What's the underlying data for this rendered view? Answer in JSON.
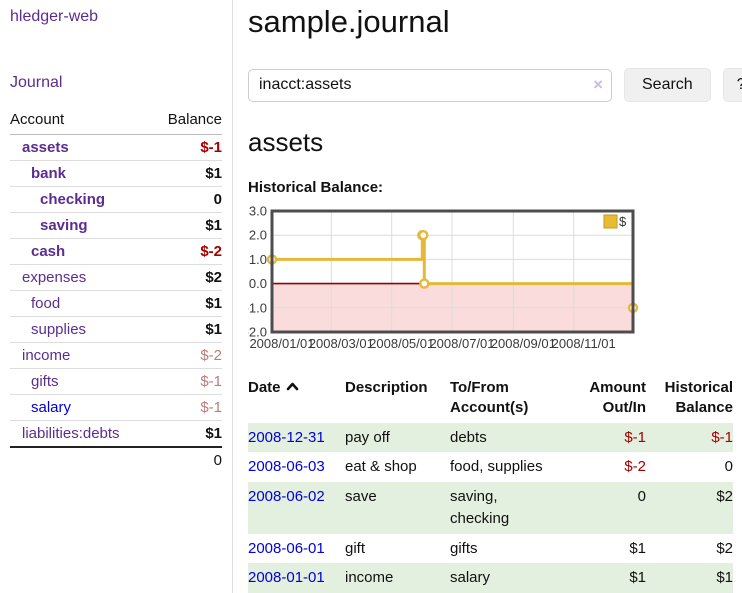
{
  "sidebar": {
    "app_title": "hledger-web",
    "journal_link": "Journal",
    "accounts": {
      "col_account": "Account",
      "col_balance": "Balance",
      "rows": [
        {
          "name": "assets",
          "indent": 0,
          "bold": true,
          "balance": "$-1",
          "tone": "neg",
          "balance_bold": true,
          "link": "purple"
        },
        {
          "name": "bank",
          "indent": 1,
          "bold": true,
          "balance": "$1",
          "tone": "pos",
          "balance_bold": true,
          "link": "purple"
        },
        {
          "name": "checking",
          "indent": 2,
          "bold": true,
          "balance": "0",
          "tone": "pos",
          "balance_bold": true,
          "link": "purple"
        },
        {
          "name": "saving",
          "indent": 2,
          "bold": true,
          "balance": "$1",
          "tone": "pos",
          "balance_bold": true,
          "link": "purple"
        },
        {
          "name": "cash",
          "indent": 1,
          "bold": true,
          "balance": "$-2",
          "tone": "neg",
          "balance_bold": true,
          "link": "purple"
        },
        {
          "name": "expenses",
          "indent": 0,
          "bold": false,
          "balance": "$2",
          "tone": "pos",
          "balance_bold": true,
          "link": "purple"
        },
        {
          "name": "food",
          "indent": 1,
          "bold": false,
          "balance": "$1",
          "tone": "pos",
          "balance_bold": true,
          "link": "purple"
        },
        {
          "name": "supplies",
          "indent": 1,
          "bold": false,
          "balance": "$1",
          "tone": "pos",
          "balance_bold": true,
          "link": "purple"
        },
        {
          "name": "income",
          "indent": 0,
          "bold": false,
          "balance": "$-2",
          "tone": "neg-soft",
          "balance_bold": false,
          "link": "purple"
        },
        {
          "name": "gifts",
          "indent": 1,
          "bold": false,
          "balance": "$-1",
          "tone": "neg-soft",
          "balance_bold": false,
          "link": "purple"
        },
        {
          "name": "salary",
          "indent": 1,
          "bold": false,
          "balance": "$-1",
          "tone": "neg-soft",
          "balance_bold": false,
          "link": "blue"
        },
        {
          "name": "liabilities:debts",
          "indent": 0,
          "bold": false,
          "balance": "$1",
          "tone": "pos",
          "balance_bold": true,
          "link": "purple"
        }
      ],
      "total": "0"
    }
  },
  "main": {
    "title": "sample.journal",
    "search": {
      "value": "inacct:assets",
      "placeholder": "",
      "clear_icon": "×",
      "button": "Search",
      "help": "?"
    },
    "account_heading": "assets",
    "chart_title": "Historical Balance:"
  },
  "chart_data": {
    "type": "line",
    "step": true,
    "title": "Historical Balance",
    "series": [
      {
        "name": "$",
        "color": "#e6b83a",
        "points": [
          [
            "2008-01-01",
            1
          ],
          [
            "2008-06-01",
            2
          ],
          [
            "2008-06-02",
            2
          ],
          [
            "2008-06-03",
            0
          ],
          [
            "2008-12-31",
            -1
          ]
        ]
      }
    ],
    "x_range": [
      "2008-01-01",
      "2008-12-31"
    ],
    "ylim": [
      -2,
      3
    ],
    "y_ticks": [
      {
        "value": 3,
        "label": "3.0"
      },
      {
        "value": 2,
        "label": "2.0"
      },
      {
        "value": 1,
        "label": "1.0"
      },
      {
        "value": 0,
        "label": "0.0"
      },
      {
        "value": -1,
        "label": "-1.0"
      },
      {
        "value": -2,
        "label": "-2.0"
      }
    ],
    "x_ticks": [
      {
        "date": "2008-01-01",
        "label": "2008/01/01"
      },
      {
        "date": "2008-03-01",
        "label": "2008/03/01"
      },
      {
        "date": "2008-05-01",
        "label": "2008/05/01"
      },
      {
        "date": "2008-07-01",
        "label": "2008/07/01"
      },
      {
        "date": "2008-09-01",
        "label": "2008/09/01"
      },
      {
        "date": "2008-11-01",
        "label": "2008/11/01"
      }
    ],
    "grid": true,
    "legend_position": "top-right",
    "colors": {
      "negative_region": "#fbdcdc",
      "zero_line": "#960000",
      "grid_line": "#dcdcdc",
      "plot_border": "#4d4d4d",
      "legend_fill": "#e9bb32",
      "legend_stroke": "#c39b22",
      "tick_text": "#3a3a3a"
    }
  },
  "register": {
    "columns": [
      "Date",
      "Description",
      "To/From Account(s)",
      "Amount Out/In",
      "Historical Balance"
    ],
    "sort_column": "Date",
    "sort_direction": "ascending",
    "rows": [
      {
        "date": "2008-12-31",
        "description": "pay off",
        "accounts": "debts",
        "amount": "$-1",
        "amount_negative": true,
        "balance": "$-1",
        "balance_negative": true,
        "shaded": true
      },
      {
        "date": "2008-06-03",
        "description": "eat & shop",
        "accounts": "food, supplies",
        "amount": "$-2",
        "amount_negative": true,
        "balance": "0",
        "balance_negative": false,
        "shaded": false
      },
      {
        "date": "2008-06-02",
        "description": "save",
        "accounts": "saving, checking",
        "amount": "0",
        "amount_negative": false,
        "balance": "$2",
        "balance_negative": false,
        "shaded": true
      },
      {
        "date": "2008-06-01",
        "description": "gift",
        "accounts": "gifts",
        "amount": "$1",
        "amount_negative": false,
        "balance": "$2",
        "balance_negative": false,
        "shaded": false
      },
      {
        "date": "2008-01-01",
        "description": "income",
        "accounts": "salary",
        "amount": "$1",
        "amount_negative": false,
        "balance": "$1",
        "balance_negative": false,
        "shaded": true
      }
    ]
  }
}
